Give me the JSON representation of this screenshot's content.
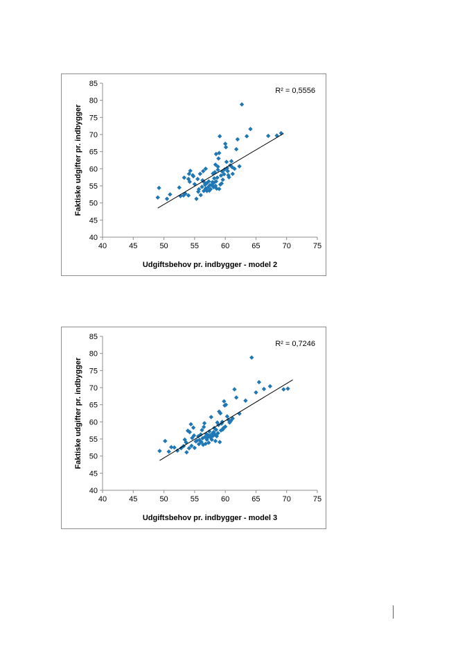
{
  "chart_data": [
    {
      "type": "scatter",
      "xlabel": "Udgiftsbehov pr. indbygger - model 2",
      "ylabel": "Faktiske udgifter pr. indbygger",
      "xlim": [
        40,
        75
      ],
      "ylim": [
        40,
        85
      ],
      "xticks": [
        40,
        45,
        50,
        55,
        60,
        65,
        70,
        75
      ],
      "yticks": [
        40,
        45,
        50,
        55,
        60,
        65,
        70,
        75,
        80,
        85
      ],
      "annotation": "R² = 0,5556",
      "grid": false,
      "marker_color": "#1f77b4",
      "trendline": {
        "x": [
          49.0,
          69.5
        ],
        "y": [
          48.5,
          70.3
        ]
      },
      "points": [
        [
          49.2,
          54.4
        ],
        [
          49.0,
          51.6
        ],
        [
          50.5,
          51.2
        ],
        [
          51.0,
          52.5
        ],
        [
          52.5,
          54.5
        ],
        [
          52.7,
          52.0
        ],
        [
          53.2,
          52.2
        ],
        [
          53.5,
          52.7
        ],
        [
          53.3,
          57.4
        ],
        [
          54.0,
          52.2
        ],
        [
          54.0,
          57.0
        ],
        [
          54.1,
          58.5
        ],
        [
          54.3,
          59.4
        ],
        [
          54.7,
          58.1
        ],
        [
          54.8,
          57.8
        ],
        [
          54.2,
          56.2
        ],
        [
          55.0,
          55.5
        ],
        [
          55.3,
          51.2
        ],
        [
          55.5,
          57.0
        ],
        [
          55.6,
          53.3
        ],
        [
          55.7,
          54.0
        ],
        [
          55.9,
          58.5
        ],
        [
          56.0,
          52.3
        ],
        [
          56.2,
          54.7
        ],
        [
          56.3,
          56.6
        ],
        [
          56.4,
          59.3
        ],
        [
          56.5,
          53.5
        ],
        [
          56.6,
          56.0
        ],
        [
          56.7,
          55.3
        ],
        [
          56.8,
          60.0
        ],
        [
          56.8,
          54.2
        ],
        [
          56.9,
          53.8
        ],
        [
          57.0,
          55.8
        ],
        [
          57.0,
          53.5
        ],
        [
          57.2,
          54.6
        ],
        [
          57.3,
          56.3
        ],
        [
          57.4,
          53.6
        ],
        [
          57.5,
          55.2
        ],
        [
          57.6,
          54.0
        ],
        [
          57.8,
          55.3
        ],
        [
          57.9,
          56.1
        ],
        [
          58.0,
          54.8
        ],
        [
          58.0,
          58.6
        ],
        [
          58.1,
          54.6
        ],
        [
          58.1,
          55.9
        ],
        [
          58.2,
          57.2
        ],
        [
          58.3,
          59.0
        ],
        [
          58.4,
          55.0
        ],
        [
          58.4,
          61.2
        ],
        [
          58.5,
          64.3
        ],
        [
          58.5,
          56.3
        ],
        [
          58.6,
          54.2
        ],
        [
          58.7,
          57.4
        ],
        [
          58.8,
          59.7
        ],
        [
          58.8,
          60.6
        ],
        [
          58.9,
          63.0
        ],
        [
          59.0,
          54.1
        ],
        [
          59.0,
          64.6
        ],
        [
          59.1,
          69.5
        ],
        [
          59.2,
          55.4
        ],
        [
          59.3,
          58.0
        ],
        [
          59.4,
          55.7
        ],
        [
          59.5,
          59.2
        ],
        [
          59.6,
          56.8
        ],
        [
          59.8,
          58.4
        ],
        [
          59.9,
          59.8
        ],
        [
          60.0,
          67.3
        ],
        [
          60.1,
          66.3
        ],
        [
          60.2,
          62.0
        ],
        [
          60.3,
          60.2
        ],
        [
          60.4,
          59.3
        ],
        [
          60.5,
          58.1
        ],
        [
          60.6,
          57.5
        ],
        [
          60.8,
          61.0
        ],
        [
          61.0,
          62.2
        ],
        [
          61.1,
          60.5
        ],
        [
          61.2,
          58.5
        ],
        [
          61.5,
          60.0
        ],
        [
          61.8,
          65.7
        ],
        [
          62.0,
          68.6
        ],
        [
          62.3,
          60.7
        ],
        [
          62.7,
          78.8
        ],
        [
          63.5,
          69.5
        ],
        [
          64.1,
          71.6
        ],
        [
          67.0,
          69.6
        ],
        [
          68.4,
          69.7
        ],
        [
          69.1,
          70.4
        ]
      ]
    },
    {
      "type": "scatter",
      "xlabel": "Udgiftsbehov pr. indbygger - model 3",
      "ylabel": "Faktiske udgifter pr. indbygger",
      "xlim": [
        40,
        75
      ],
      "ylim": [
        40,
        85
      ],
      "xticks": [
        40,
        45,
        50,
        55,
        60,
        65,
        70,
        75
      ],
      "yticks": [
        40,
        45,
        50,
        55,
        60,
        65,
        70,
        75,
        80,
        85
      ],
      "annotation": "R² = 0,7246",
      "grid": false,
      "marker_color": "#1f77b4",
      "trendline": {
        "x": [
          49.3,
          71.0
        ],
        "y": [
          48.7,
          72.3
        ]
      },
      "points": [
        [
          49.3,
          51.5
        ],
        [
          50.2,
          54.4
        ],
        [
          50.8,
          51.3
        ],
        [
          51.2,
          52.6
        ],
        [
          51.7,
          52.5
        ],
        [
          52.2,
          51.6
        ],
        [
          52.8,
          52.3
        ],
        [
          53.2,
          52.9
        ],
        [
          53.4,
          54.8
        ],
        [
          53.6,
          54.0
        ],
        [
          53.7,
          51.1
        ],
        [
          53.9,
          57.4
        ],
        [
          54.1,
          52.3
        ],
        [
          54.2,
          57.0
        ],
        [
          54.4,
          59.3
        ],
        [
          54.5,
          53.0
        ],
        [
          54.6,
          55.3
        ],
        [
          54.8,
          58.3
        ],
        [
          54.9,
          56.0
        ],
        [
          55.0,
          52.4
        ],
        [
          55.2,
          54.3
        ],
        [
          55.4,
          54.5
        ],
        [
          55.6,
          55.8
        ],
        [
          55.7,
          53.5
        ],
        [
          55.8,
          54.7
        ],
        [
          56.0,
          56.3
        ],
        [
          56.1,
          54.1
        ],
        [
          56.2,
          57.6
        ],
        [
          56.3,
          55.2
        ],
        [
          56.4,
          53.3
        ],
        [
          56.5,
          58.5
        ],
        [
          56.6,
          59.6
        ],
        [
          56.7,
          55.6
        ],
        [
          56.8,
          53.6
        ],
        [
          56.9,
          56.5
        ],
        [
          57.0,
          54.8
        ],
        [
          57.1,
          55.4
        ],
        [
          57.2,
          56.1
        ],
        [
          57.3,
          53.9
        ],
        [
          57.4,
          57.2
        ],
        [
          57.5,
          56.0
        ],
        [
          57.6,
          55.4
        ],
        [
          57.7,
          61.4
        ],
        [
          57.8,
          54.8
        ],
        [
          57.9,
          56.6
        ],
        [
          58.0,
          55.9
        ],
        [
          58.1,
          57.0
        ],
        [
          58.2,
          58.2
        ],
        [
          58.3,
          56.3
        ],
        [
          58.4,
          54.4
        ],
        [
          58.5,
          57.7
        ],
        [
          58.6,
          55.8
        ],
        [
          58.7,
          59.8
        ],
        [
          58.8,
          56.7
        ],
        [
          58.9,
          59.1
        ],
        [
          59.0,
          63.0
        ],
        [
          59.1,
          54.1
        ],
        [
          59.2,
          62.5
        ],
        [
          59.3,
          57.5
        ],
        [
          59.4,
          59.5
        ],
        [
          59.5,
          60.0
        ],
        [
          59.6,
          57.8
        ],
        [
          59.7,
          58.2
        ],
        [
          59.8,
          66.0
        ],
        [
          59.9,
          64.8
        ],
        [
          60.0,
          58.6
        ],
        [
          60.1,
          65.0
        ],
        [
          60.3,
          61.6
        ],
        [
          60.5,
          60.6
        ],
        [
          60.7,
          59.8
        ],
        [
          60.9,
          60.3
        ],
        [
          61.2,
          61.0
        ],
        [
          61.5,
          69.5
        ],
        [
          61.8,
          67.1
        ],
        [
          62.3,
          62.4
        ],
        [
          63.3,
          66.2
        ],
        [
          64.3,
          78.8
        ],
        [
          65.0,
          68.6
        ],
        [
          65.5,
          71.6
        ],
        [
          66.3,
          69.6
        ],
        [
          67.3,
          70.4
        ],
        [
          69.5,
          69.5
        ],
        [
          70.2,
          69.7
        ]
      ]
    }
  ]
}
